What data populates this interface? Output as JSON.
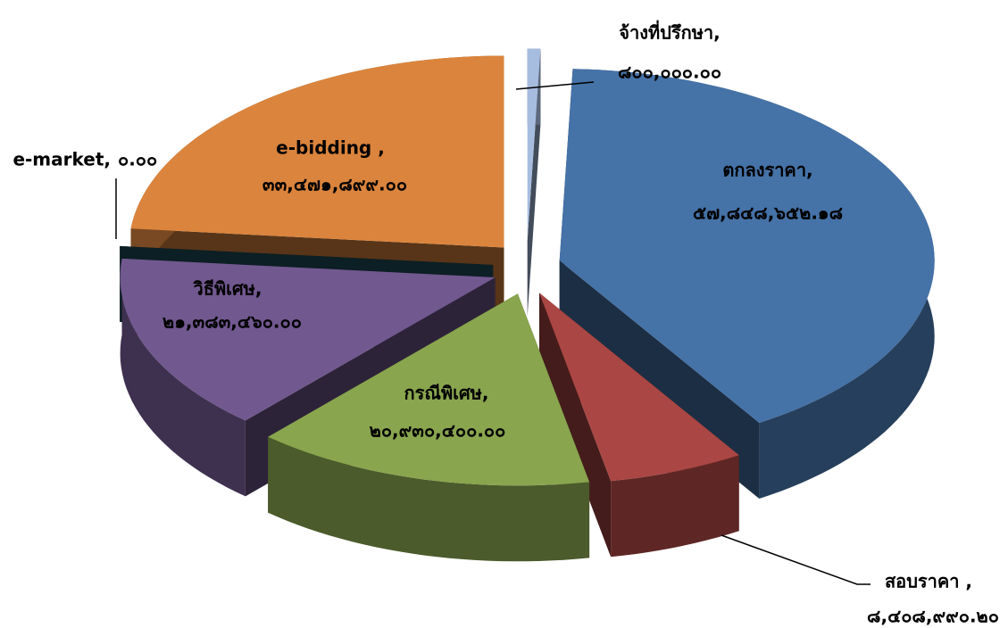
{
  "chart_data": {
    "type": "pie3d",
    "categories": [
      "จ้างที่ปรึกษา,",
      "ตกลงราคา,",
      "สอบราคา  ,",
      "กรณีพิเศษ,",
      "วิธีพิเศษ,",
      "e-market,",
      "e-bidding ,"
    ],
    "values": [
      800000.0,
      57848652.18,
      8408990.2,
      20930400.0,
      21383460.0,
      0.0,
      33471899.0
    ],
    "value_labels": [
      "๘๐๐,๐๐๐.๐๐",
      "๕๗,๘๔๘,๖๕๒.๑๘",
      "๘,๔๐๘,๙๙๐.๒๐",
      "๒๐,๙๓๐,๔๐๐.๐๐",
      "๒๑,๓๘๓,๔๖๐.๐๐",
      "๐.๐๐",
      "๓๓,๔๗๑,๘๙๙.๐๐"
    ],
    "colors": [
      "#a7bde0",
      "#4572a7",
      "#aa4643",
      "#89a54e",
      "#71588f",
      "#1f4e5a",
      "#db843d"
    ]
  }
}
